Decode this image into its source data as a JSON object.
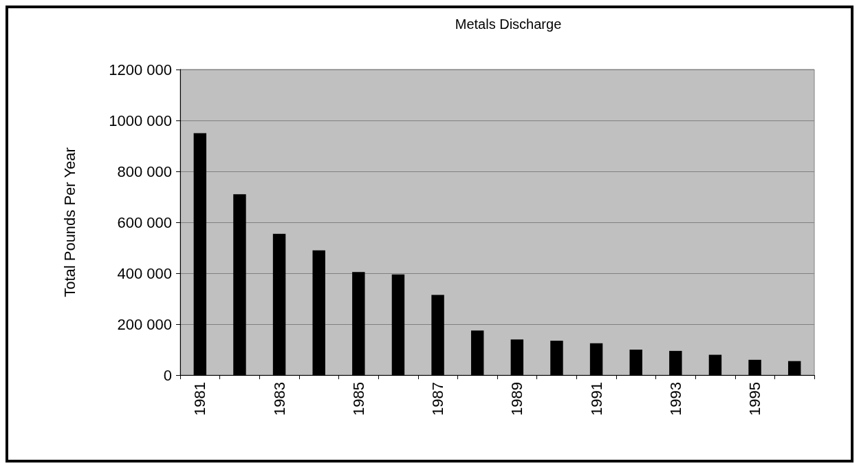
{
  "chart_data": {
    "type": "bar",
    "title": "Metals Discharge",
    "ylabel": "Total Pounds Per Year",
    "categories": [
      "1981",
      null,
      "1983",
      null,
      "1985",
      null,
      "1987",
      null,
      "1989",
      null,
      "1991",
      null,
      "1993",
      null,
      "1995",
      null
    ],
    "values": [
      950000,
      710000,
      555000,
      490000,
      405000,
      395000,
      315000,
      175000,
      140000,
      135000,
      125000,
      100000,
      95000,
      80000,
      60000,
      55000
    ],
    "color": "#000000",
    "ylim": [
      0,
      1200000
    ],
    "yticks": [
      0,
      {
        "value": 200000,
        "label": "200 000"
      },
      {
        "value": 400000,
        "label": "400 000"
      },
      {
        "value": 600000,
        "label": "600 000"
      },
      {
        "value": 800000,
        "label": "800 000"
      },
      {
        "value": 1000000,
        "label": "1000 000"
      },
      {
        "value": 1200000,
        "label": "1200 000"
      }
    ],
    "grid": "y"
  }
}
